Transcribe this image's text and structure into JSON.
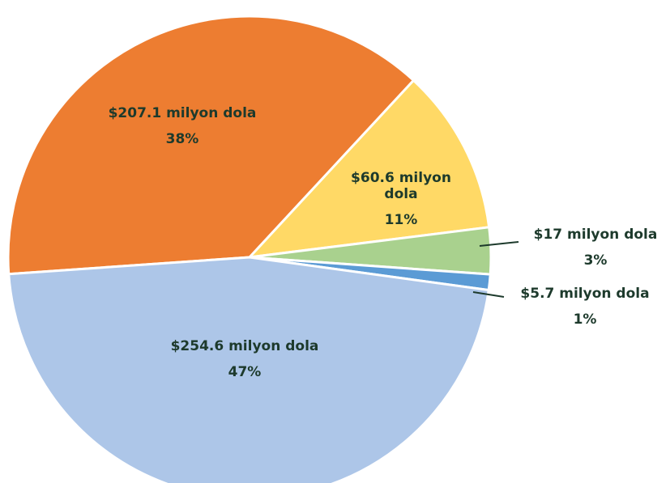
{
  "chart_data": {
    "type": "pie",
    "values": [
      207.1,
      60.6,
      17,
      5.7,
      254.6
    ],
    "value_labels": [
      "$207.1 milyon dola",
      "$60.6 milyon dola",
      "$17 milyon dola",
      "$5.7 milyon dola",
      "$254.6 milyon dola"
    ],
    "percentages": [
      38,
      11,
      3,
      1,
      47
    ],
    "percentage_labels": [
      "38%",
      "11%",
      "3%",
      "1%",
      "47%"
    ],
    "colors": [
      "#ed7d31",
      "#ffd966",
      "#a9d18e",
      "#5b9bd5",
      "#adc6e8"
    ]
  }
}
